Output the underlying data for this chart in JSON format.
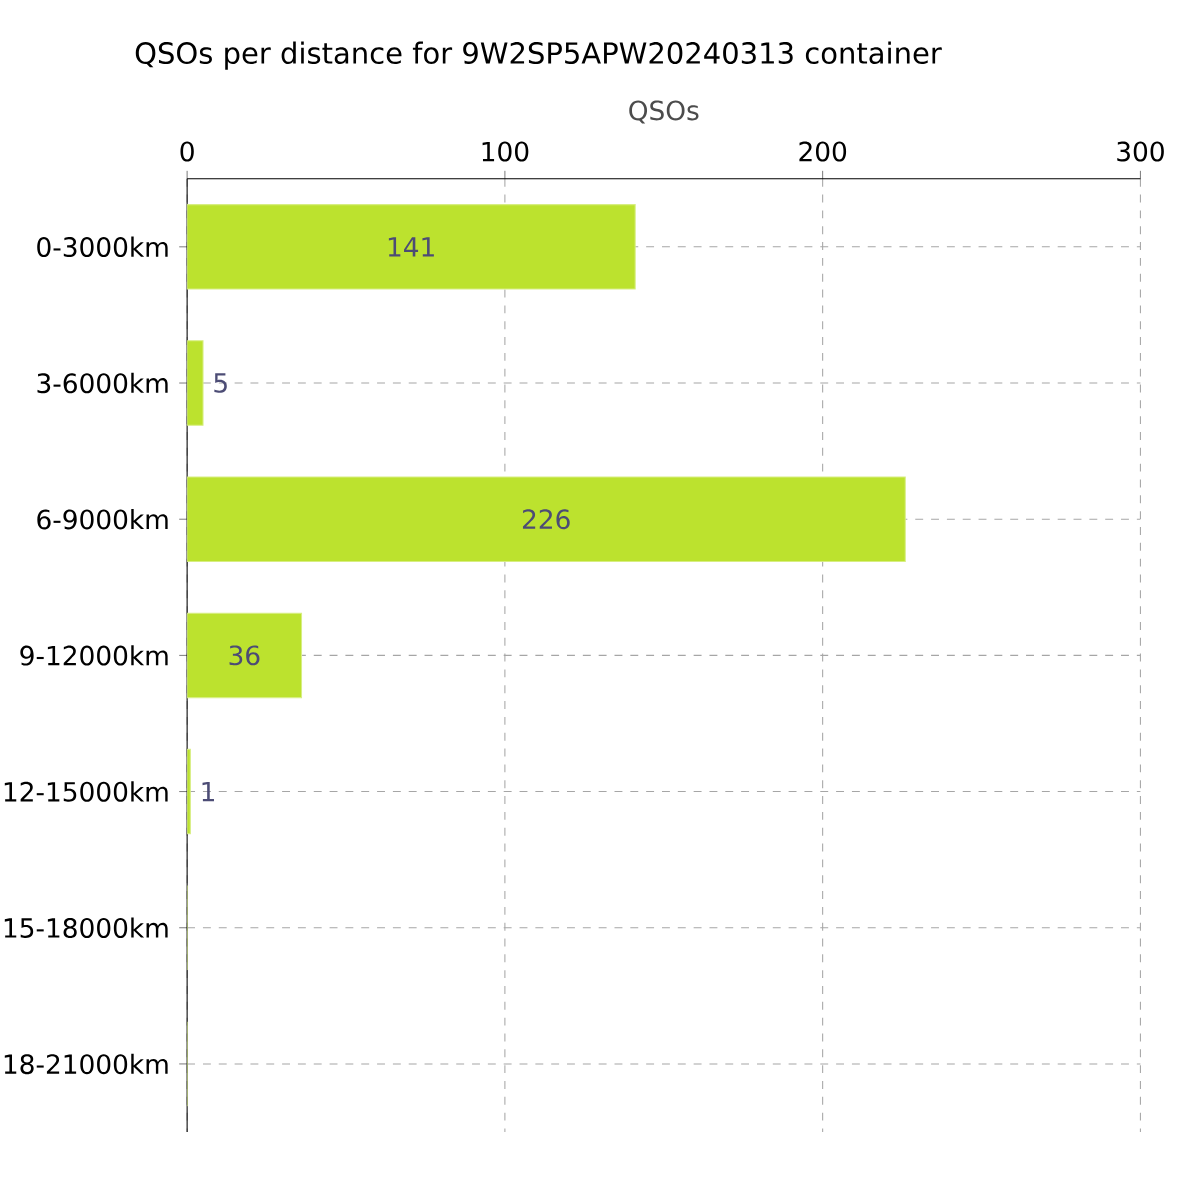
{
  "chart_data": {
    "type": "bar",
    "orientation": "horizontal",
    "title": "QSOs per distance for 9W2SP5APW20240313 container",
    "xlabel": "QSOs",
    "categories": [
      "0-3000km",
      "3-6000km",
      "6-9000km",
      "9-12000km",
      "12-15000km",
      "15-18000km",
      "18-21000km"
    ],
    "values": [
      141,
      5,
      226,
      36,
      1,
      0,
      0
    ],
    "value_labels": [
      "141",
      "5",
      "226",
      "36",
      "1",
      null,
      null
    ],
    "color": "#bce22e",
    "xlim": [
      0,
      300
    ],
    "xticks": [
      0,
      100,
      200,
      300
    ],
    "grid": true
  }
}
